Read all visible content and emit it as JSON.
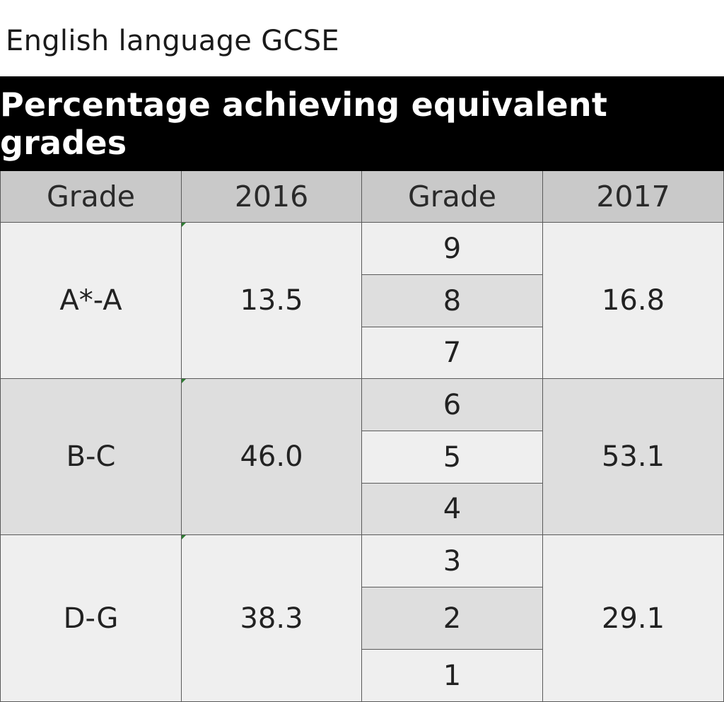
{
  "caption": "English language GCSE",
  "chart_data": {
    "type": "table",
    "title": "Percentage achieving equivalent grades",
    "columns": [
      "Grade",
      "2016",
      "Grade",
      "2017"
    ],
    "rows": [
      {
        "old_grade": "A*-A",
        "value_2016": "13.5",
        "new_grades": [
          "9",
          "8",
          "7"
        ],
        "value_2017": "16.8"
      },
      {
        "old_grade": "B-C",
        "value_2016": "46.0",
        "new_grades": [
          "6",
          "5",
          "4"
        ],
        "value_2017": "53.1"
      },
      {
        "old_grade": "D-G",
        "value_2016": "38.3",
        "new_grades": [
          "3",
          "2",
          "1"
        ],
        "value_2017": "29.1"
      }
    ]
  },
  "colors": {
    "title_background": "#000000",
    "title_text": "#ffffff",
    "header_background": "#c9c9c9",
    "cell_light": "#efefef",
    "cell_mid": "#dedede"
  }
}
